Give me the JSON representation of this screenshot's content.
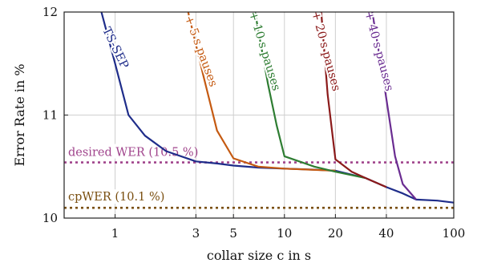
{
  "chart_data": {
    "type": "line",
    "xlabel": "collar size c in s",
    "ylabel": "Error Rate in %",
    "x_scale": "log",
    "xlim": [
      0.5,
      100
    ],
    "ylim": [
      10,
      12
    ],
    "xticks": [
      1,
      3,
      5,
      10,
      20,
      40,
      100
    ],
    "yticks": [
      10,
      11,
      12
    ],
    "grid": true,
    "series": [
      {
        "name": "TS-SEP",
        "color": "#1f2d8a",
        "x": [
          0.83,
          1.0,
          1.2,
          1.5,
          2.0,
          3.0,
          4.0,
          5.0,
          7.0,
          10.0,
          15.0,
          20.0,
          30.0,
          40.0,
          50.0,
          60.0,
          80.0,
          100.0
        ],
        "y": [
          12.0,
          11.5,
          11.0,
          10.8,
          10.65,
          10.55,
          10.53,
          10.51,
          10.49,
          10.48,
          10.47,
          10.46,
          10.39,
          10.3,
          10.24,
          10.18,
          10.17,
          10.15
        ]
      },
      {
        "name": "+ 5 s pauses",
        "color": "#c55a11",
        "x": [
          2.7,
          3.3,
          4.0,
          5.0,
          7.0,
          10.0,
          20.0
        ],
        "y": [
          12.0,
          11.4,
          10.85,
          10.58,
          10.5,
          10.48,
          10.46
        ]
      },
      {
        "name": "+ 10 s pauses",
        "color": "#2e7d32",
        "x": [
          6.7,
          8.0,
          9.0,
          10.0,
          15.0,
          20.0,
          30.0
        ],
        "y": [
          12.0,
          11.3,
          10.9,
          10.6,
          10.5,
          10.45,
          10.39
        ]
      },
      {
        "name": "+ 20 s pauses",
        "color": "#8b1a1a",
        "x": [
          16.5,
          18.0,
          20.0,
          25.0,
          30.0,
          40.0
        ],
        "y": [
          12.0,
          11.2,
          10.57,
          10.45,
          10.39,
          10.3
        ]
      },
      {
        "name": "+ 40 s pauses",
        "color": "#6a2c91",
        "x": [
          33.0,
          38.0,
          45.0,
          50.0,
          60.0
        ],
        "y": [
          12.0,
          11.4,
          10.6,
          10.33,
          10.18
        ]
      }
    ],
    "reference_lines": [
      {
        "label": "desired WER (10.5 %)",
        "y": 10.54,
        "color": "#a0448c"
      },
      {
        "label": "cpWER (10.1 %)",
        "y": 10.1,
        "color": "#7a4f10"
      }
    ]
  }
}
